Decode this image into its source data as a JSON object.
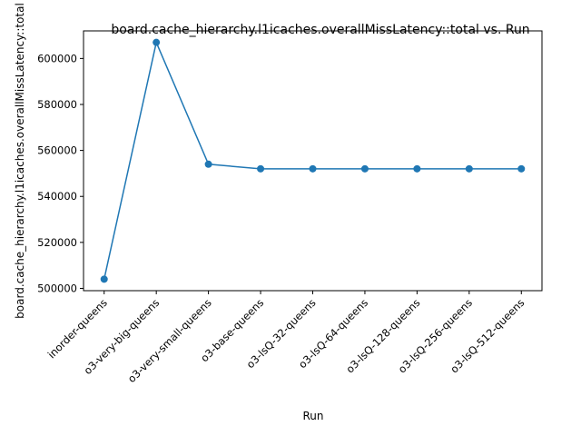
{
  "chart_data": {
    "type": "line",
    "title": "board.cache_hierarchy.l1icaches.overallMissLatency::total vs. Run",
    "xlabel": "Run",
    "ylabel": "board.cache_hierarchy.l1icaches.overallMissLatency::total",
    "categories": [
      "inorder-queens",
      "o3-very-big-queens",
      "o3-very-small-queens",
      "o3-base-queens",
      "o3-lsQ-32-queens",
      "o3-lsQ-64-queens",
      "o3-lsQ-128-queens",
      "o3-lsQ-256-queens",
      "o3-lsQ-512-queens"
    ],
    "values": [
      504000,
      607000,
      554000,
      552000,
      552000,
      552000,
      552000,
      552000,
      552000
    ],
    "yticks": [
      500000,
      520000,
      540000,
      560000,
      580000,
      600000
    ],
    "ylim": [
      499000,
      612000
    ],
    "grid": false,
    "color": "#1f77b4"
  }
}
